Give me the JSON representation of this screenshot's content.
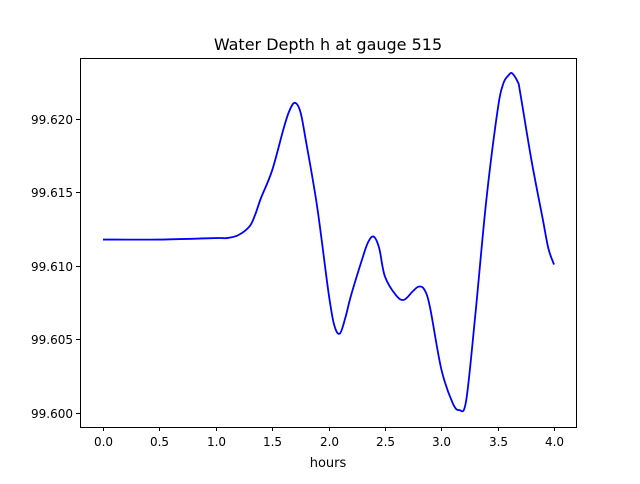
{
  "chart_data": {
    "type": "line",
    "title": "Water Depth h at gauge 515",
    "xlabel": "hours",
    "ylabel": "",
    "xlim": [
      -0.2,
      4.2
    ],
    "ylim": [
      99.5992,
      99.6241
    ],
    "x_ticks": [
      "0.0",
      "0.5",
      "1.0",
      "1.5",
      "2.0",
      "2.5",
      "3.0",
      "3.5",
      "4.0"
    ],
    "x_tick_values": [
      0,
      0.5,
      1,
      1.5,
      2,
      2.5,
      3,
      3.5,
      4
    ],
    "y_ticks": [
      "99.600",
      "99.605",
      "99.610",
      "99.615",
      "99.620"
    ],
    "y_tick_values": [
      99.6,
      99.605,
      99.61,
      99.615,
      99.62
    ],
    "grid": false,
    "series": [
      {
        "name": "h",
        "color": "#0000ff",
        "x": [
          0,
          0.5,
          1.0,
          1.1,
          1.2,
          1.3,
          1.35,
          1.4,
          1.5,
          1.6,
          1.65,
          1.7,
          1.75,
          1.8,
          1.9,
          2.0,
          2.05,
          2.1,
          2.15,
          2.2,
          2.3,
          2.35,
          2.4,
          2.45,
          2.5,
          2.6,
          2.67,
          2.75,
          2.8,
          2.85,
          2.9,
          3.0,
          3.1,
          3.16,
          3.22,
          3.3,
          3.4,
          3.5,
          3.55,
          3.6,
          3.63,
          3.68,
          3.7,
          3.8,
          3.9,
          3.95,
          4.0
        ],
        "y": [
          99.6118,
          99.6118,
          99.6119,
          99.6119,
          99.6121,
          99.6127,
          99.6135,
          99.6146,
          99.6165,
          99.6193,
          99.6205,
          99.6211,
          99.6205,
          99.6185,
          99.614,
          99.6082,
          99.606,
          99.6054,
          99.6065,
          99.608,
          99.6105,
          99.6116,
          99.612,
          99.6112,
          99.6093,
          99.608,
          99.6077,
          99.6083,
          99.6086,
          99.6084,
          99.6072,
          99.603,
          99.6007,
          99.6002,
          99.6008,
          99.6065,
          99.6145,
          99.6206,
          99.6224,
          99.623,
          99.6231,
          99.6225,
          99.6218,
          99.6172,
          99.6132,
          99.6112,
          99.6101
        ]
      }
    ]
  }
}
